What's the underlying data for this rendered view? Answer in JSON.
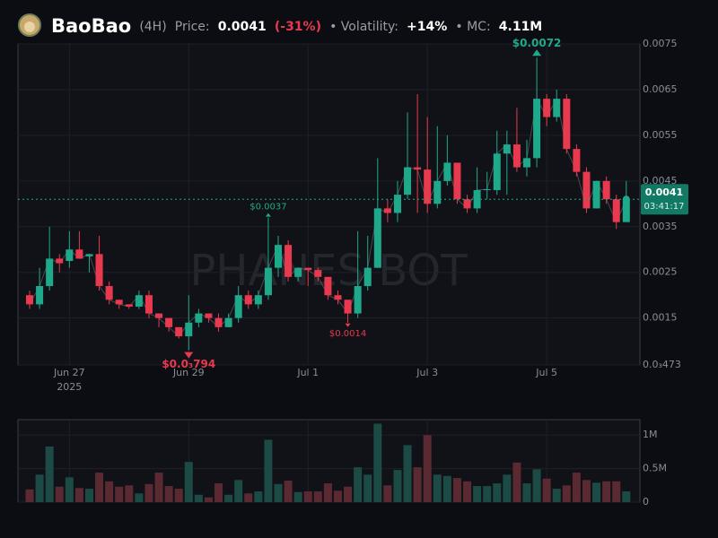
{
  "header": {
    "title": "BaoBao",
    "interval": "(4H)",
    "price_label": "Price:",
    "change": "(-31%)",
    "volatility_label": "• Volatility:",
    "volatility": "+14%",
    "mc_label": "• MC:",
    "mc": "4.11M"
  },
  "chart_data": {
    "type": "candlestick",
    "watermark": "PHANES BOT",
    "categories": [
      null,
      null,
      null,
      null,
      "Jun 27",
      null,
      null,
      null,
      null,
      null,
      null,
      null,
      null,
      null,
      null,
      null,
      "Jun 29",
      null,
      null,
      null,
      null,
      null,
      null,
      null,
      null,
      null,
      null,
      null,
      "Jul 1",
      null,
      null,
      null,
      null,
      null,
      null,
      null,
      null,
      null,
      null,
      null,
      "Jul 3",
      null,
      null,
      null,
      null,
      null,
      null,
      null,
      null,
      null,
      null,
      null,
      "Jul 5",
      null,
      null,
      null,
      null,
      null,
      null,
      null,
      null
    ],
    "year_label": "2025",
    "open": [
      0.002,
      0.0018,
      0.0022,
      0.0028,
      0.00275,
      0.003,
      0.00285,
      0.0029,
      0.0022,
      0.0019,
      0.0018,
      0.00175,
      0.002,
      0.0016,
      0.0015,
      0.0013,
      0.0011,
      0.0014,
      0.0016,
      0.0015,
      0.0013,
      0.0015,
      0.002,
      0.0018,
      0.002,
      0.0026,
      0.0031,
      0.0024,
      0.0026,
      0.00255,
      0.0024,
      0.002,
      0.0019,
      0.0016,
      0.0022,
      0.0026,
      0.0039,
      0.0038,
      0.0042,
      0.0048,
      0.00475,
      0.004,
      0.0045,
      0.0049,
      0.0041,
      0.0039,
      0.0043,
      0.0043,
      0.0051,
      0.0053,
      0.0048,
      0.005,
      0.0063,
      0.0059,
      0.0063,
      0.0052,
      0.0047,
      0.0039,
      0.0045,
      0.0041,
      0.0036
    ],
    "high": [
      0.0021,
      0.0026,
      0.0035,
      0.0029,
      0.0034,
      0.0034,
      0.0029,
      0.0033,
      0.0023,
      0.0019,
      0.0018,
      0.0021,
      0.0021,
      0.0016,
      0.0015,
      0.0013,
      0.002,
      0.0017,
      0.0016,
      0.0016,
      0.0016,
      0.0022,
      0.0021,
      0.0021,
      0.0037,
      0.0033,
      0.0032,
      0.0026,
      0.0026,
      0.0026,
      0.0024,
      0.0021,
      0.0019,
      0.0034,
      0.0033,
      0.005,
      0.0041,
      0.0045,
      0.006,
      0.0064,
      0.0059,
      0.0057,
      0.0055,
      0.0049,
      0.0042,
      0.0048,
      0.0047,
      0.0056,
      0.0056,
      0.0061,
      0.0054,
      0.0072,
      0.0064,
      0.0065,
      0.0064,
      0.0053,
      0.0048,
      0.0045,
      0.0046,
      0.0042,
      0.0045
    ],
    "low": [
      0.0017,
      0.0017,
      0.0021,
      0.0025,
      0.0026,
      0.0028,
      0.0025,
      0.0021,
      0.0018,
      0.0017,
      0.0017,
      0.0017,
      0.0015,
      0.0013,
      0.0012,
      0.00105,
      0.000794,
      0.0013,
      0.0014,
      0.0012,
      0.0013,
      0.0014,
      0.0017,
      0.0017,
      0.0019,
      0.0024,
      0.0023,
      0.0023,
      0.0022,
      0.0023,
      0.0019,
      0.0018,
      0.0014,
      0.0015,
      0.0021,
      0.0026,
      0.0036,
      0.0036,
      0.0041,
      0.0038,
      0.0038,
      0.0039,
      0.0044,
      0.004,
      0.0038,
      0.0038,
      0.0041,
      0.0042,
      0.0042,
      0.0047,
      0.0046,
      0.0048,
      0.0057,
      0.0058,
      0.0051,
      0.0046,
      0.0038,
      0.0039,
      0.004,
      0.00345,
      0.0036
    ],
    "close": [
      0.0018,
      0.0022,
      0.0028,
      0.0027,
      0.003,
      0.0028,
      0.0029,
      0.0022,
      0.0019,
      0.0018,
      0.00175,
      0.002,
      0.0016,
      0.0015,
      0.0013,
      0.0011,
      0.0014,
      0.0016,
      0.0015,
      0.0013,
      0.0015,
      0.002,
      0.0018,
      0.002,
      0.0026,
      0.0031,
      0.0024,
      0.0026,
      0.00255,
      0.0024,
      0.002,
      0.0019,
      0.0016,
      0.0022,
      0.0026,
      0.0039,
      0.0038,
      0.0042,
      0.0048,
      0.00475,
      0.004,
      0.0045,
      0.0049,
      0.0041,
      0.0039,
      0.0043,
      0.00432,
      0.0051,
      0.0053,
      0.0048,
      0.005,
      0.0063,
      0.0059,
      0.0063,
      0.0052,
      0.0047,
      0.0039,
      0.0045,
      0.0041,
      0.0036,
      0.0041
    ],
    "volume": [
      190000,
      410000,
      830000,
      230000,
      370000,
      210000,
      200000,
      440000,
      310000,
      230000,
      250000,
      130000,
      270000,
      440000,
      240000,
      200000,
      600000,
      110000,
      70000,
      280000,
      110000,
      330000,
      130000,
      160000,
      930000,
      270000,
      320000,
      150000,
      160000,
      160000,
      280000,
      170000,
      230000,
      520000,
      410000,
      1170000,
      250000,
      480000,
      850000,
      520000,
      1000000,
      410000,
      390000,
      360000,
      310000,
      240000,
      240000,
      280000,
      410000,
      590000,
      280000,
      490000,
      350000,
      200000,
      250000,
      440000,
      330000,
      290000,
      310000,
      310000,
      160000
    ],
    "up_color": "#1fa98b",
    "down_color": "#e8394f",
    "volume_up_color": "#1c4a45",
    "volume_down_color": "#5a2931",
    "ylim": [
      0.000473,
      0.0075
    ],
    "yticks": [
      {
        "value": 0.000473,
        "label": "0.0₃473"
      },
      0.0015,
      0.0025,
      0.0035,
      0.0045,
      0.0055,
      0.0065,
      0.0075
    ],
    "volume_ylim": [
      0,
      1230000
    ],
    "volume_ticks": [
      0,
      {
        "value": 500000,
        "label": "0.5M"
      },
      {
        "value": 1000000,
        "label": "1M"
      }
    ],
    "grid": true,
    "current_price": 0.0041,
    "countdown": "03:41:17",
    "annotations": [
      {
        "label": "$0.0072",
        "value": 0.0072
      },
      {
        "label": "$0.0037",
        "value": 0.0037
      },
      {
        "label": "$0.0014",
        "value": 0.0014
      },
      {
        "label": "$0.0₃794",
        "value": 0.000794
      }
    ]
  }
}
